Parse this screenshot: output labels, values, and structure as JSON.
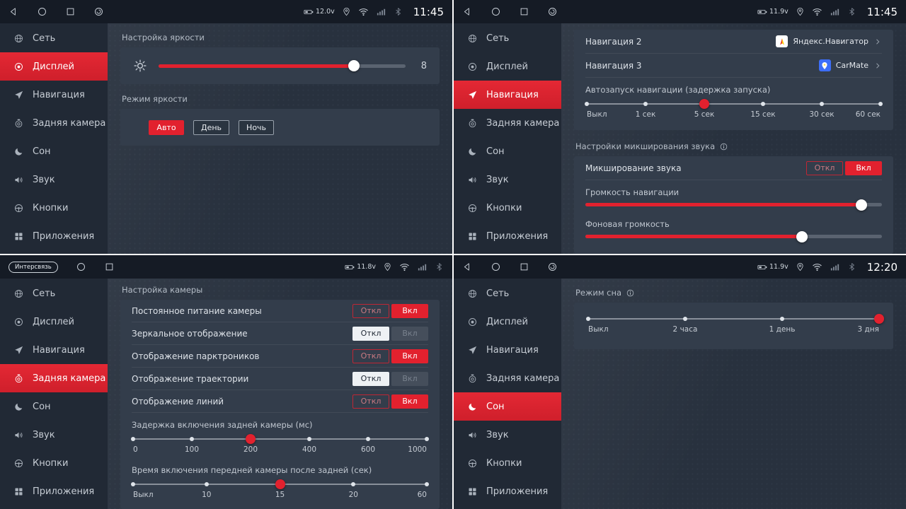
{
  "colors": {
    "accent": "#e2212e",
    "bg": "#28313e",
    "sidebar": "#212935",
    "statusbar": "#151b25",
    "panel": "#333d4b"
  },
  "sidebar": {
    "items": [
      "Сеть",
      "Дисплей",
      "Навигация",
      "Задняя камера",
      "Сон",
      "Звук",
      "Кнопки",
      "Приложения"
    ]
  },
  "toggle": {
    "off": "Откл",
    "on": "Вкл"
  },
  "screens": {
    "display": {
      "status": {
        "voltage": "12.0v",
        "time": "11:45"
      },
      "brightness": {
        "heading": "Настройка яркости",
        "value": "8",
        "percent": 79
      },
      "mode": {
        "heading": "Режим яркости",
        "options": [
          "Авто",
          "День",
          "Ночь"
        ],
        "active": "Авто"
      }
    },
    "navigation": {
      "status": {
        "voltage": "11.9v",
        "time": "11:45"
      },
      "apps": [
        {
          "label": "Навигация 2",
          "app": "Яндекс.Навигатор"
        },
        {
          "label": "Навигация 3",
          "app": "CarMate"
        }
      ],
      "autostart": {
        "label": "Автозапуск навигации (задержка запуска)",
        "stops": [
          "Выкл",
          "1 сек",
          "5 сек",
          "15 сек",
          "30 сек",
          "60 сек"
        ],
        "selected_index": 2,
        "selected_value": "5 сек"
      },
      "mixing": {
        "heading": "Настройки микширования звука",
        "toggle_label": "Микширование звука",
        "toggle_state": "Вкл",
        "sliders": [
          {
            "label": "Громкость навигации",
            "percent": 93
          },
          {
            "label": "Фоновая громкость",
            "percent": 73
          }
        ]
      }
    },
    "camera": {
      "status": {
        "carrier": "Интерсвязь",
        "voltage": "11.8v"
      },
      "heading": "Настройка камеры",
      "switches": [
        {
          "label": "Постоянное питание камеры",
          "state": "Вкл"
        },
        {
          "label": "Зеркальное отображение",
          "state": "Откл"
        },
        {
          "label": "Отображение парктроников",
          "state": "Вкл"
        },
        {
          "label": "Отображение траектории",
          "state": "Откл"
        },
        {
          "label": "Отображение линий",
          "state": "Вкл"
        }
      ],
      "delay": {
        "label": "Задержка включения задней камеры (мс)",
        "stops": [
          "0",
          "100",
          "200",
          "400",
          "600",
          "1000"
        ],
        "selected_index": 2,
        "selected_value": "200"
      },
      "front_cam": {
        "label": "Время включения передней камеры после задней (сек)",
        "stops": [
          "Выкл",
          "10",
          "15",
          "20",
          "60"
        ],
        "selected_index": 2,
        "selected_value": "15"
      }
    },
    "sleep": {
      "status": {
        "voltage": "11.9v",
        "time": "12:20"
      },
      "heading": "Режим сна",
      "stops": [
        "Выкл",
        "2 часа",
        "1 день",
        "3 дня"
      ],
      "selected_index": 3,
      "selected_value": "3 дня"
    }
  }
}
